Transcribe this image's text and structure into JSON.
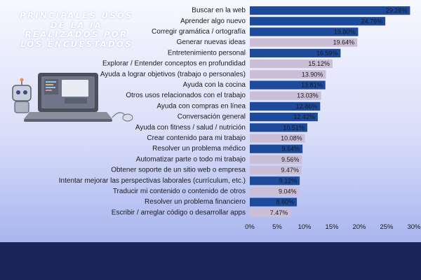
{
  "title": "PRINCIPALES USOS DE LA IA REALIZADOS POR LOS ENCUESTADOS",
  "colors": {
    "primary_bar": "#1e4a9b",
    "secondary_bar": "#cbbfd8",
    "footer_band": "#1b2459",
    "title_text": "#ffffff"
  },
  "chart_data": {
    "type": "bar",
    "orientation": "horizontal",
    "title": "PRINCIPALES USOS DE LA IA REALIZADOS POR LOS ENCUESTADOS",
    "xlabel": "",
    "ylabel": "",
    "xlim": [
      0,
      30
    ],
    "x_ticks": [
      "0%",
      "5%",
      "10%",
      "15%",
      "20%",
      "25%",
      "30%"
    ],
    "grid": false,
    "categories": [
      "Buscar en la web",
      "Aprender algo nuevo",
      "Corregir gramática / ortografía",
      "Generar nuevas ideas",
      "Entretenimiento personal",
      "Explorar / Entender conceptos en profundidad",
      "Ayuda a lograr objetivos (trabajo o personales)",
      "Ayuda con la cocina",
      "Otros usos relacionados con el trabajo",
      "Ayuda con compras en línea",
      "Conversación general",
      "Ayuda con fitness / salud / nutrición",
      "Crear contenido para mi trabajo",
      "Resolver un problema médico",
      "Automatizar parte o todo mi trabajo",
      "Obtener soporte de un sitio web o empresa",
      "Intentar mejorar las perspectivas laborales (currículum, etc.)",
      "Traducir mi contenido o contenido de otros",
      "Resolver un problema financiero",
      "Escribir / arreglar código o desarrollar apps"
    ],
    "values": [
      29.28,
      24.76,
      19.8,
      19.64,
      16.59,
      15.12,
      13.9,
      13.81,
      13.03,
      12.86,
      12.42,
      10.51,
      10.08,
      9.64,
      9.56,
      9.47,
      9.12,
      9.04,
      8.6,
      7.47
    ],
    "value_labels": [
      "29.28%",
      "24.76%",
      "19.80%",
      "19.64%",
      "16.59%",
      "15.12%",
      "13.90%",
      "13.81%",
      "13.03%",
      "12.86%",
      "12.42%",
      "10.51%",
      "10.08%",
      "9.64%",
      "9.56%",
      "9.47%",
      "9.12%",
      "9.04%",
      "8.60%",
      "7.47%"
    ],
    "bar_colors": [
      "primary",
      "primary",
      "primary",
      "secondary",
      "primary",
      "secondary",
      "secondary",
      "primary",
      "secondary",
      "primary",
      "primary",
      "primary",
      "secondary",
      "primary",
      "secondary",
      "secondary",
      "primary",
      "secondary",
      "primary",
      "secondary"
    ]
  },
  "illustration": {
    "icons": [
      "laptop-icon",
      "robot-icon",
      "mouse-icon"
    ]
  }
}
